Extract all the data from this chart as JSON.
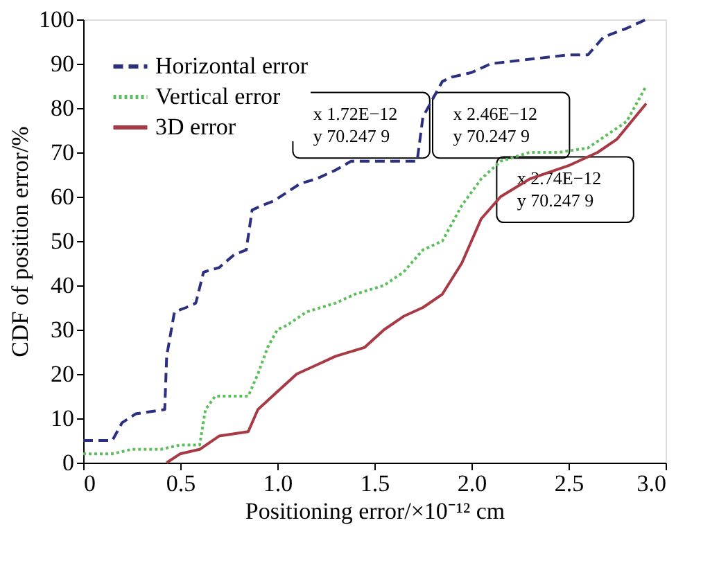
{
  "chart_data": {
    "type": "line",
    "xlabel": "Positioning error/×10⁻¹² cm",
    "ylabel": "CDF of position error/%",
    "xlim": [
      0,
      3.0
    ],
    "xticks": [
      0,
      {
        "value": 0.5,
        "label": "0.5"
      },
      {
        "value": 1.0,
        "label": "1.0"
      },
      {
        "value": 1.5,
        "label": "1.5"
      },
      {
        "value": 2.0,
        "label": "2.0"
      },
      {
        "value": 2.5,
        "label": "2.5"
      },
      {
        "value": 3.0,
        "label": "3.0"
      }
    ],
    "ylim": [
      0,
      100
    ],
    "yticks": [
      0,
      10,
      20,
      30,
      40,
      50,
      60,
      70,
      80,
      90,
      100
    ],
    "grid": false,
    "legend": "top left",
    "marker": "none",
    "series": [
      {
        "name": "Horizontal error",
        "color": "#2b2f7f",
        "line_style": "dashed",
        "x": [
          0,
          0.15,
          0.2,
          0.27,
          0.42,
          0.43,
          0.47,
          0.53,
          0.58,
          0.62,
          0.7,
          0.78,
          0.84,
          0.87,
          0.92,
          0.98,
          1.05,
          1.12,
          1.2,
          1.3,
          1.38,
          1.6,
          1.72,
          1.75,
          1.85,
          1.9,
          2.0,
          2.1,
          2.3,
          2.5,
          2.6,
          2.68,
          2.8,
          2.9
        ],
        "values": [
          5,
          5,
          9,
          11,
          12,
          24,
          34,
          35,
          36,
          43,
          44,
          47,
          48,
          57,
          58,
          59,
          61,
          63,
          64,
          66,
          68,
          68,
          68,
          78,
          86,
          87,
          88,
          90,
          91,
          92,
          92,
          96,
          98,
          100
        ]
      },
      {
        "name": "Vertical error",
        "color": "#5cbf5c",
        "line_style": "dotted",
        "x": [
          0,
          0.15,
          0.25,
          0.4,
          0.5,
          0.6,
          0.63,
          0.68,
          0.85,
          0.9,
          0.95,
          1.0,
          1.05,
          1.15,
          1.3,
          1.4,
          1.55,
          1.65,
          1.75,
          1.85,
          1.95,
          2.05,
          2.15,
          2.3,
          2.45,
          2.6,
          2.7,
          2.8,
          2.9
        ],
        "values": [
          2,
          2,
          3,
          3,
          4,
          4,
          12,
          15,
          15,
          20,
          26,
          30,
          31,
          34,
          36,
          38,
          40,
          43,
          48,
          50,
          58,
          64,
          68,
          70,
          70,
          71,
          74,
          77,
          85
        ]
      },
      {
        "name": "3D error",
        "color": "#a83a45",
        "line_style": "solid",
        "x": [
          0.43,
          0.5,
          0.6,
          0.7,
          0.85,
          0.9,
          1.0,
          1.1,
          1.2,
          1.3,
          1.45,
          1.55,
          1.65,
          1.75,
          1.85,
          1.95,
          2.05,
          2.15,
          2.3,
          2.5,
          2.65,
          2.75,
          2.9
        ],
        "values": [
          0,
          2,
          3,
          6,
          7,
          12,
          16,
          20,
          22,
          24,
          26,
          30,
          33,
          35,
          38,
          45,
          55,
          60,
          64,
          67,
          70,
          73,
          81
        ]
      }
    ],
    "annotations": [
      "x 1.72E−12\ny 70.247 9",
      "x 2.46E−12\ny 70.247 9",
      "x 2.74E−12\ny 70.247 9"
    ]
  }
}
